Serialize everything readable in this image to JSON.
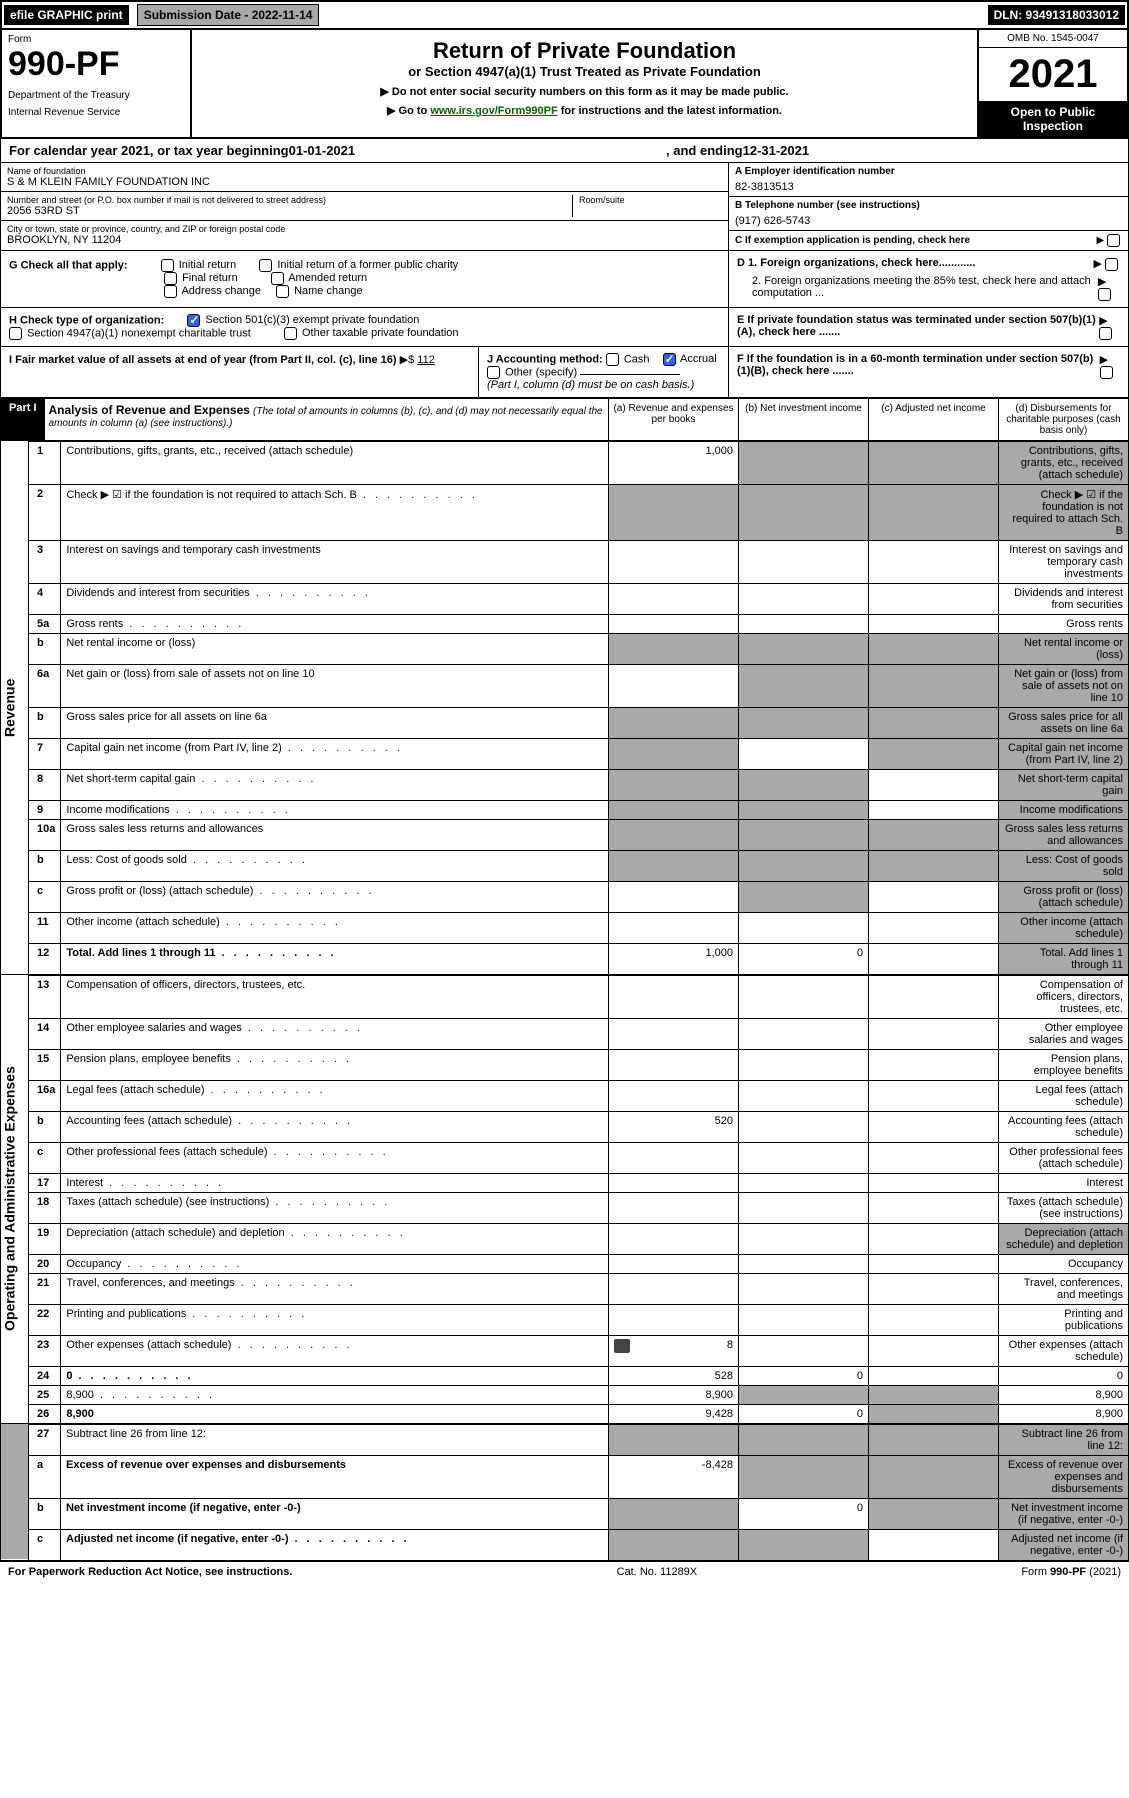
{
  "topbar": {
    "efile": "efile GRAPHIC print",
    "submission": "Submission Date - 2022-11-14",
    "dln": "DLN: 93491318033012"
  },
  "header": {
    "form_label": "Form",
    "form_number": "990-PF",
    "dept1": "Department of the Treasury",
    "dept2": "Internal Revenue Service",
    "title": "Return of Private Foundation",
    "subtitle": "or Section 4947(a)(1) Trust Treated as Private Foundation",
    "note1": "▶ Do not enter social security numbers on this form as it may be made public.",
    "note2_pre": "▶ Go to ",
    "note2_link": "www.irs.gov/Form990PF",
    "note2_post": " for instructions and the latest information.",
    "omb": "OMB No. 1545-0047",
    "year": "2021",
    "open": "Open to Public Inspection"
  },
  "calyear": {
    "pre": "For calendar year 2021, or tax year beginning ",
    "begin": "01-01-2021",
    "mid": " , and ending ",
    "end": "12-31-2021"
  },
  "info": {
    "name_label": "Name of foundation",
    "name": "S & M KLEIN FAMILY FOUNDATION INC",
    "addr_label": "Number and street (or P.O. box number if mail is not delivered to street address)",
    "addr": "2056 53RD ST",
    "room_label": "Room/suite",
    "city_label": "City or town, state or province, country, and ZIP or foreign postal code",
    "city": "BROOKLYN, NY  11204",
    "ein_label": "A Employer identification number",
    "ein": "82-3813513",
    "phone_label": "B Telephone number (see instructions)",
    "phone": "(917) 626-5743",
    "c_label": "C If exemption application is pending, check here",
    "g_label": "G Check all that apply:",
    "g_opts": [
      "Initial return",
      "Initial return of a former public charity",
      "Final return",
      "Amended return",
      "Address change",
      "Name change"
    ],
    "d1": "D 1. Foreign organizations, check here............",
    "d2": "2. Foreign organizations meeting the 85% test, check here and attach computation ...",
    "h_label": "H Check type of organization:",
    "h1": "Section 501(c)(3) exempt private foundation",
    "h2": "Section 4947(a)(1) nonexempt charitable trust",
    "h3": "Other taxable private foundation",
    "e_label": "E  If private foundation status was terminated under section 507(b)(1)(A), check here .......",
    "i_label": "I Fair market value of all assets at end of year (from Part II, col. (c), line 16)",
    "i_val": "112",
    "j_label": "J Accounting method:",
    "j_cash": "Cash",
    "j_accrual": "Accrual",
    "j_other": "Other (specify)",
    "j_note": "(Part I, column (d) must be on cash basis.)",
    "f_label": "F  If the foundation is in a 60-month termination under section 507(b)(1)(B), check here ......."
  },
  "part1": {
    "label": "Part I",
    "title": "Analysis of Revenue and Expenses",
    "sub": "(The total of amounts in columns (b), (c), and (d) may not necessarily equal the amounts in column (a) (see instructions).)",
    "col_a": "(a)   Revenue and expenses per books",
    "col_b": "(b)  Net investment income",
    "col_c": "(c)  Adjusted net income",
    "col_d": "(d)  Disbursements for charitable purposes (cash basis only)"
  },
  "sections": {
    "revenue": "Revenue",
    "expenses": "Operating and Administrative Expenses"
  },
  "rows": [
    {
      "n": "1",
      "d": "Contributions, gifts, grants, etc., received (attach schedule)",
      "a": "1,000",
      "shade_bcd": true
    },
    {
      "n": "2",
      "d": "Check ▶ ☑ if the foundation is not required to attach Sch. B",
      "dots": true,
      "shade_all": true
    },
    {
      "n": "3",
      "d": "Interest on savings and temporary cash investments"
    },
    {
      "n": "4",
      "d": "Dividends and interest from securities",
      "dots": true
    },
    {
      "n": "5a",
      "d": "Gross rents",
      "dots": true
    },
    {
      "n": "b",
      "d": "Net rental income or (loss)",
      "inset": true,
      "shade_all": true
    },
    {
      "n": "6a",
      "d": "Net gain or (loss) from sale of assets not on line 10",
      "shade_bcd": true
    },
    {
      "n": "b",
      "d": "Gross sales price for all assets on line 6a",
      "inset": true,
      "shade_all": true
    },
    {
      "n": "7",
      "d": "Capital gain net income (from Part IV, line 2)",
      "dots": true,
      "shade_a": true,
      "shade_cd": true
    },
    {
      "n": "8",
      "d": "Net short-term capital gain",
      "dots": true,
      "shade_ab": true,
      "shade_d": true
    },
    {
      "n": "9",
      "d": "Income modifications",
      "dots": true,
      "shade_ab": true,
      "shade_d": true
    },
    {
      "n": "10a",
      "d": "Gross sales less returns and allowances",
      "inset": true,
      "shade_all": true
    },
    {
      "n": "b",
      "d": "Less: Cost of goods sold",
      "dots": true,
      "inset": true,
      "shade_all": true
    },
    {
      "n": "c",
      "d": "Gross profit or (loss) (attach schedule)",
      "dots": true,
      "shade_b": true,
      "shade_d": true
    },
    {
      "n": "11",
      "d": "Other income (attach schedule)",
      "dots": true,
      "shade_d": true
    },
    {
      "n": "12",
      "d": "Total. Add lines 1 through 11",
      "dots": true,
      "bold": true,
      "a": "1,000",
      "b": "0",
      "shade_d": true
    }
  ],
  "exp_rows": [
    {
      "n": "13",
      "d": "Compensation of officers, directors, trustees, etc."
    },
    {
      "n": "14",
      "d": "Other employee salaries and wages",
      "dots": true
    },
    {
      "n": "15",
      "d": "Pension plans, employee benefits",
      "dots": true
    },
    {
      "n": "16a",
      "d": "Legal fees (attach schedule)",
      "dots": true
    },
    {
      "n": "b",
      "d": "Accounting fees (attach schedule)",
      "dots": true,
      "a": "520"
    },
    {
      "n": "c",
      "d": "Other professional fees (attach schedule)",
      "dots": true
    },
    {
      "n": "17",
      "d": "Interest",
      "dots": true
    },
    {
      "n": "18",
      "d": "Taxes (attach schedule) (see instructions)",
      "dots": true
    },
    {
      "n": "19",
      "d": "Depreciation (attach schedule) and depletion",
      "dots": true,
      "shade_d": true
    },
    {
      "n": "20",
      "d": "Occupancy",
      "dots": true
    },
    {
      "n": "21",
      "d": "Travel, conferences, and meetings",
      "dots": true
    },
    {
      "n": "22",
      "d": "Printing and publications",
      "dots": true
    },
    {
      "n": "23",
      "d": "Other expenses (attach schedule)",
      "dots": true,
      "icon": true,
      "a": "8"
    },
    {
      "n": "24",
      "d": "0",
      "dots": true,
      "bold": true,
      "a": "528",
      "b": "0"
    },
    {
      "n": "25",
      "d": "8,900",
      "dots": true,
      "a": "8,900",
      "shade_bc": true
    },
    {
      "n": "26",
      "d": "8,900",
      "bold": true,
      "a": "9,428",
      "b": "0",
      "shade_c": true
    }
  ],
  "net_rows": [
    {
      "n": "27",
      "d": "Subtract line 26 from line 12:",
      "shade_all": true
    },
    {
      "n": "a",
      "d": "Excess of revenue over expenses and disbursements",
      "bold": true,
      "a": "-8,428",
      "shade_bcd": true
    },
    {
      "n": "b",
      "d": "Net investment income (if negative, enter -0-)",
      "bold": true,
      "shade_a": true,
      "b": "0",
      "shade_cd": true
    },
    {
      "n": "c",
      "d": "Adjusted net income (if negative, enter -0-)",
      "bold": true,
      "dots": true,
      "shade_ab": true,
      "shade_d": true
    }
  ],
  "footer": {
    "left": "For Paperwork Reduction Act Notice, see instructions.",
    "mid": "Cat. No. 11289X",
    "right": "Form 990-PF (2021)"
  },
  "colors": {
    "shade": "#a9a9a9",
    "link": "#006600",
    "check": "#2962ff"
  }
}
